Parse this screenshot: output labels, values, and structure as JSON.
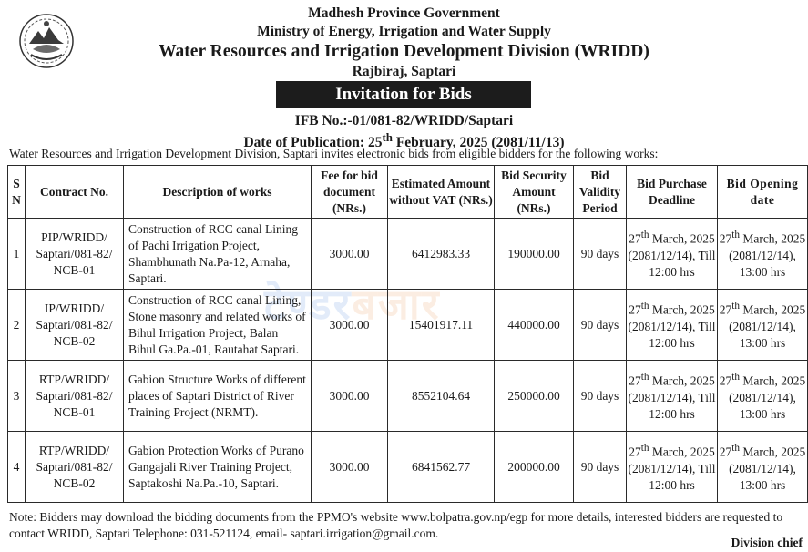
{
  "header": {
    "line1": "Madhesh Province Government",
    "line2": "Ministry of Energy, Irrigation and Water Supply",
    "line3": "Water Resources and Irrigation Development Division (WRIDD)",
    "line4": "Rajbiraj, Saptari"
  },
  "banner": {
    "title": "Invitation for Bids"
  },
  "ifb": {
    "number": "IFB No.:-01/081-82/WRIDD/Saptari"
  },
  "publication": {
    "label": "Date of Publication: 25",
    "sup": "th",
    "rest": " February, 2025 (2081/11/13)"
  },
  "intro": {
    "text": "Water Resources and Irrigation Development Division, Saptari invites electronic bids from eligible bidders for the following works:"
  },
  "table": {
    "headers": {
      "sn_s": "S",
      "sn_n": "N",
      "contract": "Contract No.",
      "desc": "Description of works",
      "fee": "Fee for bid document (NRs.)",
      "estimate": "Estimated Amount without VAT (NRs.)",
      "security": "Bid Security Amount (NRs.)",
      "validity": "Bid Validity Period",
      "purchase": "Bid Purchase Deadline",
      "opening": "Bid Opening date"
    },
    "rows": [
      {
        "sn": "1",
        "contract": "PIP/WRIDD/ Saptari/081-82/ NCB-01",
        "desc": "Construction of RCC canal Lining of Pachi Irrigation Project, Shambhunath Na.Pa-12, Arnaha, Saptari.",
        "fee": "3000.00",
        "estimate": "6412983.33",
        "security": "190000.00",
        "validity": "90 days",
        "purchase_day": "27",
        "purchase_sup": "th",
        "purchase_rest": " March, 2025 (2081/12/14), Till 12:00 hrs",
        "opening_day": "27",
        "opening_sup": "th",
        "opening_rest": " March, 2025 (2081/12/14), 13:00 hrs"
      },
      {
        "sn": "2",
        "contract": "IP/WRIDD/ Saptari/081-82/ NCB-02",
        "desc": "Construction of RCC canal Lining, Stone masonry and related works of Bihul Irrigation Project, Balan Bihul Ga.Pa.-01, Rautahat Saptari.",
        "fee": "3000.00",
        "estimate": "15401917.11",
        "security": "440000.00",
        "validity": "90 days",
        "purchase_day": "27",
        "purchase_sup": "th",
        "purchase_rest": " March, 2025 (2081/12/14), Till 12:00 hrs",
        "opening_day": "27",
        "opening_sup": "th",
        "opening_rest": " March, 2025 (2081/12/14), 13:00 hrs"
      },
      {
        "sn": "3",
        "contract": "RTP/WRIDD/ Saptari/081-82/ NCB-01",
        "desc": "Gabion Structure Works of different places of Saptari District of River Training Project (NRMT).",
        "fee": "3000.00",
        "estimate": "8552104.64",
        "security": "250000.00",
        "validity": "90 days",
        "purchase_day": "27",
        "purchase_sup": "th",
        "purchase_rest": " March, 2025 (2081/12/14), Till 12:00 hrs",
        "opening_day": "27",
        "opening_sup": "th",
        "opening_rest": " March, 2025 (2081/12/14), 13:00 hrs"
      },
      {
        "sn": "4",
        "contract": "RTP/WRIDD/ Saptari/081-82/ NCB-02",
        "desc": "Gabion Protection Works of Purano Gangajali River Training Project, Saptakoshi Na.Pa.-10, Saptari.",
        "fee": "3000.00",
        "estimate": "6841562.77",
        "security": "200000.00",
        "validity": "90 days",
        "purchase_day": "27",
        "purchase_sup": "th",
        "purchase_rest": " March, 2025 (2081/12/14), Till 12:00 hrs",
        "opening_day": "27",
        "opening_sup": "th",
        "opening_rest": " March, 2025 (2081/12/14), 13:00 hrs"
      }
    ]
  },
  "watermark": {
    "part1": "टेण्डर",
    "part2": "बजार"
  },
  "note": {
    "text": "Note: Bidders may download the bidding documents from the PPMO's website www.bolpatra.gov.np/egp for more details, interested bidders are requested to contact WRIDD, Saptari Telephone: 031-521124, email- saptari.irrigation@gmail.com."
  },
  "signature": {
    "text": "Division chief"
  }
}
